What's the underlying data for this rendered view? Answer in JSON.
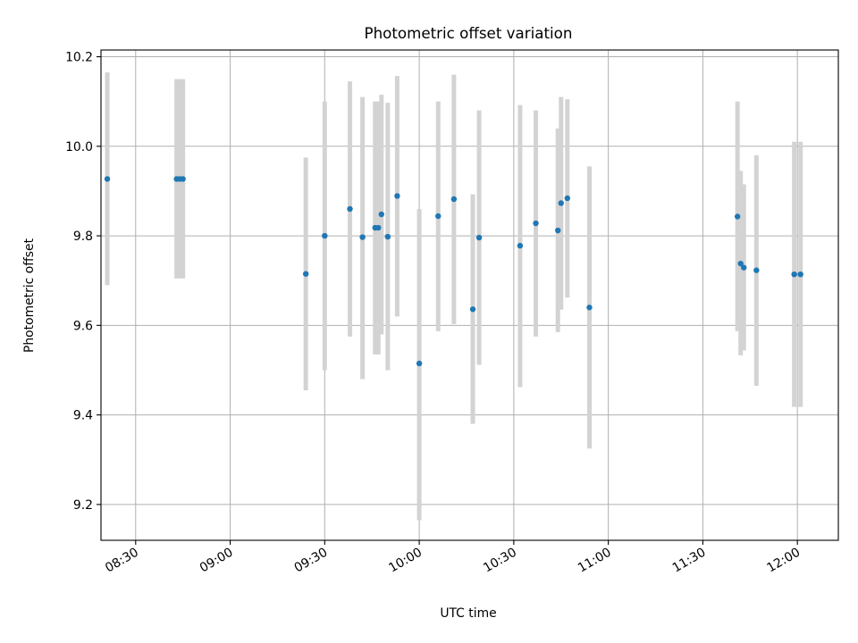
{
  "chart_data": {
    "type": "scatter",
    "title": "Photometric offset variation",
    "xlabel": "UTC time",
    "ylabel": "Photometric offset",
    "x_ticks": [
      "08:30",
      "09:00",
      "09:30",
      "10:00",
      "10:30",
      "11:00",
      "11:30",
      "12:00"
    ],
    "y_ticks": [
      "9.2",
      "9.4",
      "9.6",
      "9.8",
      "10.0",
      "10.2"
    ],
    "xlim": [
      "08:19",
      "12:13"
    ],
    "ylim": [
      9.12,
      10.215
    ],
    "grid": true,
    "marker_color": "#1f77b4",
    "errorbar_color": "#d3d3d3",
    "points": [
      {
        "x": "08:21",
        "y": 9.927,
        "lo": 9.69,
        "hi": 10.165
      },
      {
        "x": "08:43",
        "y": 9.927,
        "lo": 9.705,
        "hi": 10.15
      },
      {
        "x": "08:44",
        "y": 9.927,
        "lo": 9.705,
        "hi": 10.15
      },
      {
        "x": "08:45",
        "y": 9.927,
        "lo": 9.705,
        "hi": 10.15
      },
      {
        "x": "09:24",
        "y": 9.715,
        "lo": 9.455,
        "hi": 9.975
      },
      {
        "x": "09:30",
        "y": 9.8,
        "lo": 9.5,
        "hi": 10.1
      },
      {
        "x": "09:38",
        "y": 9.86,
        "lo": 9.575,
        "hi": 10.145
      },
      {
        "x": "09:42",
        "y": 9.797,
        "lo": 9.48,
        "hi": 10.11
      },
      {
        "x": "09:46",
        "y": 9.818,
        "lo": 9.535,
        "hi": 10.1
      },
      {
        "x": "09:47",
        "y": 9.818,
        "lo": 9.535,
        "hi": 10.1
      },
      {
        "x": "09:48",
        "y": 9.848,
        "lo": 9.58,
        "hi": 10.115
      },
      {
        "x": "09:50",
        "y": 9.798,
        "lo": 9.5,
        "hi": 10.097
      },
      {
        "x": "09:53",
        "y": 9.889,
        "lo": 9.62,
        "hi": 10.157
      },
      {
        "x": "10:00",
        "y": 9.515,
        "lo": 9.165,
        "hi": 9.86
      },
      {
        "x": "10:06",
        "y": 9.844,
        "lo": 9.587,
        "hi": 10.1
      },
      {
        "x": "10:11",
        "y": 9.882,
        "lo": 9.603,
        "hi": 10.16
      },
      {
        "x": "10:17",
        "y": 9.636,
        "lo": 9.38,
        "hi": 9.893
      },
      {
        "x": "10:19",
        "y": 9.796,
        "lo": 9.512,
        "hi": 10.08
      },
      {
        "x": "10:32",
        "y": 9.778,
        "lo": 9.462,
        "hi": 10.092
      },
      {
        "x": "10:37",
        "y": 9.828,
        "lo": 9.575,
        "hi": 10.08
      },
      {
        "x": "10:44",
        "y": 9.812,
        "lo": 9.585,
        "hi": 10.04
      },
      {
        "x": "10:45",
        "y": 9.873,
        "lo": 9.635,
        "hi": 10.11
      },
      {
        "x": "10:47",
        "y": 9.884,
        "lo": 9.662,
        "hi": 10.105
      },
      {
        "x": "10:54",
        "y": 9.64,
        "lo": 9.325,
        "hi": 9.955
      },
      {
        "x": "11:41",
        "y": 9.843,
        "lo": 9.587,
        "hi": 10.1
      },
      {
        "x": "11:42",
        "y": 9.738,
        "lo": 9.533,
        "hi": 9.945
      },
      {
        "x": "11:43",
        "y": 9.729,
        "lo": 9.544,
        "hi": 9.915
      },
      {
        "x": "11:47",
        "y": 9.723,
        "lo": 9.465,
        "hi": 9.98
      },
      {
        "x": "11:59",
        "y": 9.714,
        "lo": 9.418,
        "hi": 10.01
      },
      {
        "x": "12:01",
        "y": 9.714,
        "lo": 9.418,
        "hi": 10.01
      }
    ]
  }
}
